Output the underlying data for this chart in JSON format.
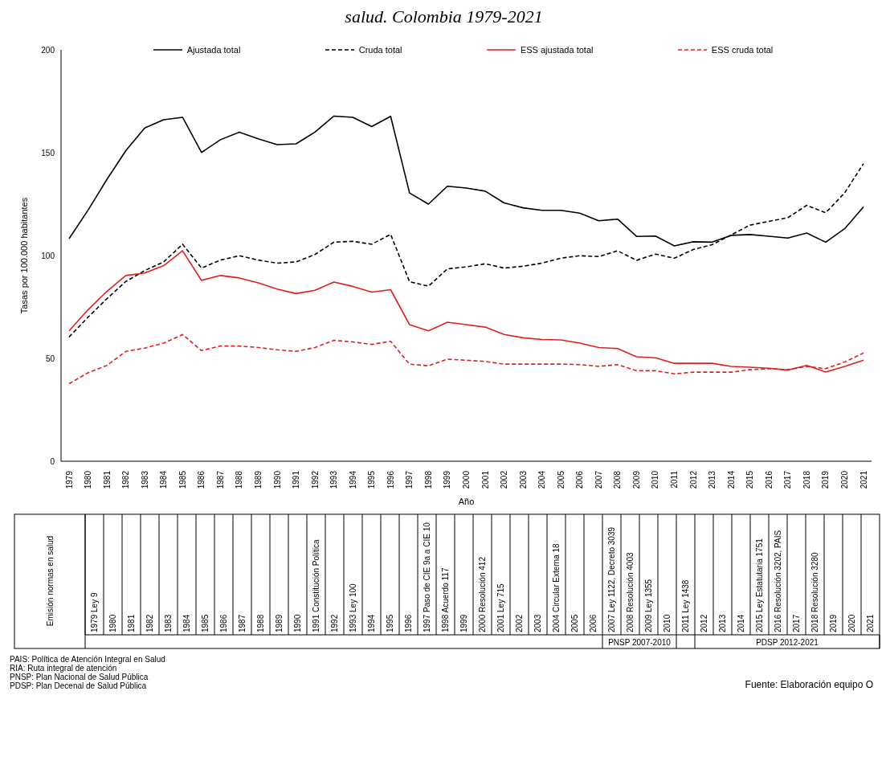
{
  "chart_data": {
    "type": "line",
    "title": "salud. Colombia 1979-2021",
    "xlabel": "Año",
    "ylabel": "Tasas por 100.000 habitantes",
    "categories": [
      "1979",
      "1980",
      "1981",
      "1982",
      "1983",
      "1984",
      "1985",
      "1986",
      "1987",
      "1988",
      "1989",
      "1990",
      "1991",
      "1992",
      "1993",
      "1994",
      "1995",
      "1996",
      "1997",
      "1998",
      "1999",
      "2000",
      "2001",
      "2002",
      "2003",
      "2004",
      "2005",
      "2006",
      "2007",
      "2008",
      "2009",
      "2010",
      "2011",
      "2012",
      "2013",
      "2014",
      "2015",
      "2016",
      "2017",
      "2018",
      "2019",
      "2020",
      "2021"
    ],
    "series": [
      {
        "name": "Ajustada total",
        "color": "#000000",
        "line_style": "solid",
        "values": [
          108.2,
          122,
          137,
          151,
          162,
          166,
          167.2,
          150.1,
          156.3,
          160,
          156.7,
          153.9,
          154.3,
          160,
          167.8,
          167.2,
          162.7,
          167.7,
          130.4,
          125,
          133.7,
          132.8,
          131.3,
          125.6,
          123.2,
          122,
          122,
          120.6,
          116.9,
          117.7,
          109.3,
          109.5,
          104.7,
          106.7,
          106.5,
          109.8,
          110.2,
          109.4,
          108.5,
          110.9,
          106.5,
          113,
          123.6
        ]
      },
      {
        "name": "Cruda total",
        "color": "#000000",
        "line_style": "dashed",
        "values": [
          60.4,
          70,
          79,
          87.4,
          92.7,
          96.9,
          105.5,
          93.9,
          97.8,
          99.9,
          97.8,
          96.3,
          96.9,
          100.5,
          106.5,
          106.9,
          105.5,
          110.3,
          87.3,
          85.1,
          93.5,
          94.5,
          96,
          93.9,
          94.8,
          96.3,
          98.7,
          99.9,
          99.5,
          102.3,
          97.7,
          100.7,
          98.7,
          102.9,
          105.3,
          110,
          114.8,
          116.6,
          118.4,
          124.4,
          120.8,
          130.4,
          144.7
        ]
      },
      {
        "name": "ESS ajustada total",
        "color": "#e02020",
        "line_style": "solid",
        "values": [
          63.4,
          73.6,
          82.6,
          90.3,
          91.5,
          95.1,
          102.3,
          87.9,
          90.3,
          89.1,
          86.7,
          83.7,
          81.5,
          83.1,
          87.1,
          85,
          82.2,
          83.4,
          66.4,
          63.4,
          67.6,
          66.4,
          65.2,
          61.6,
          60,
          59.2,
          59,
          57.4,
          55.3,
          54.8,
          50.8,
          50.3,
          47.6,
          47.6,
          47.6,
          46.1,
          45.7,
          45.2,
          44.3,
          46.6,
          43.4,
          46.1,
          49.1
        ]
      },
      {
        "name": "ESS cruda total",
        "color": "#e02020",
        "line_style": "dashed",
        "values": [
          37.7,
          43,
          46.6,
          53.4,
          55,
          57.4,
          61.6,
          53.8,
          56,
          56,
          55.3,
          54.2,
          53.4,
          55.3,
          58.8,
          58,
          56.8,
          58.3,
          47.2,
          46.4,
          49.6,
          49.1,
          48.5,
          47.2,
          47.2,
          47.2,
          47.2,
          47,
          46.1,
          47,
          44,
          44,
          42.5,
          43.3,
          43.3,
          43.3,
          44.5,
          45,
          44.5,
          46.1,
          45,
          48.2,
          52.6
        ]
      }
    ],
    "ylim": [
      0,
      200
    ],
    "yticks": [
      0,
      50,
      100,
      150,
      200
    ],
    "grid": false,
    "legend": "top",
    "marker": "none",
    "annotations": [
      "Emisión normas en salud",
      "1979 Ley 9",
      "1980",
      "1981",
      "1982",
      "1983",
      "1984",
      "1985",
      "1986",
      "1987",
      "1988",
      "1989",
      "1990",
      "1991 Constitución Política",
      "1992",
      "1993 Ley 100",
      "1994",
      "1995",
      "1996",
      "1997 Paso de CIE 9a a CIE 10",
      "1998 Acuerdo 117",
      "1999",
      "2000 Resolución 412",
      "2001 Ley 715",
      "2002",
      "2003",
      "2004 Circular Externa 18",
      "2005",
      "2006",
      "2007 Ley 1122, Decreto 3039",
      "2008 Resolución 4003",
      "2009 Ley 1355",
      "2010",
      "2011 Ley 1438",
      "2012",
      "2013",
      "2014",
      "2015 Ley Estatutaria 1751",
      "2016 Resolución 3202, PAIS",
      "2017",
      "2018 Resolución 3280",
      "2019",
      "2020",
      "2021",
      "PNSP 2007-2010",
      "PDSP 2012-2021",
      "PAIS: Política de Atención Integral en Salud",
      "RIA: Ruta integral de atención",
      "PNSP: Plan Nacional de Salud Pública",
      "PDSP: Plan Decenal de Salud Pública",
      "Fuente: Elaboración equipo O"
    ]
  }
}
